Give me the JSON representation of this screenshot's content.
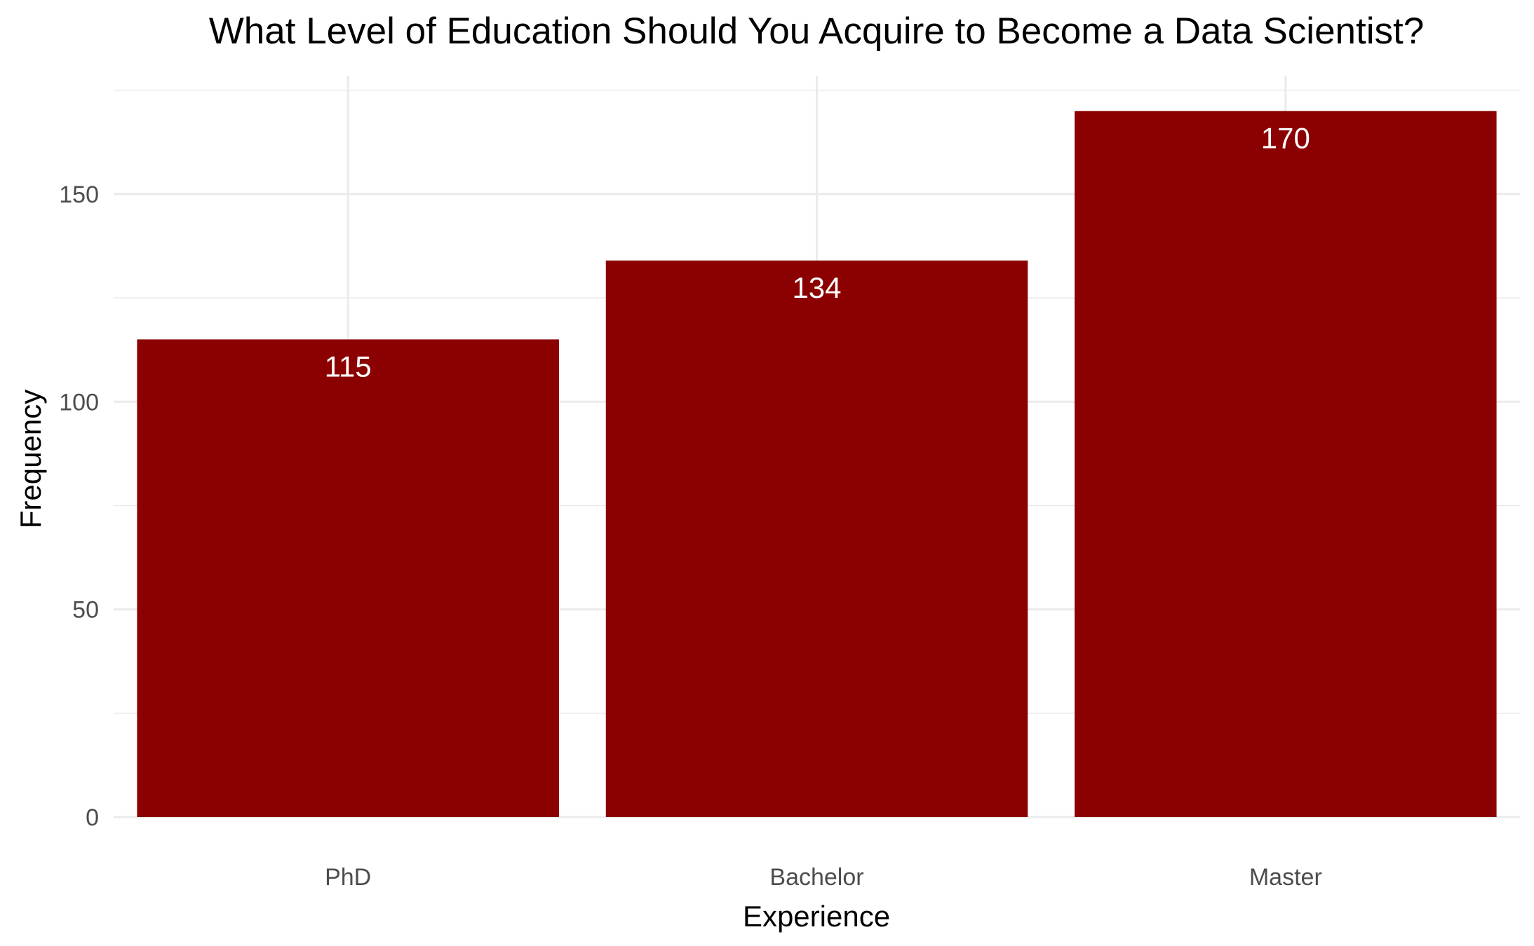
{
  "chart_data": {
    "type": "bar",
    "title": "What Level of Education Should You Acquire to Become a Data Scientist?",
    "xlabel": "Experience",
    "ylabel": "Frequency",
    "categories": [
      "PhD",
      "Bachelor",
      "Master"
    ],
    "values": [
      115,
      134,
      170
    ],
    "data_labels": [
      "115",
      "134",
      "170"
    ],
    "ylim": [
      0,
      178.5
    ],
    "y_ticks": [
      0,
      50,
      100,
      150
    ],
    "y_tick_labels": [
      "0",
      "50",
      "100",
      "150"
    ],
    "y_minor_ticks": [
      25,
      75,
      125,
      175
    ],
    "grid": true,
    "legend": "none",
    "bar_color": "#8B0000",
    "label_color": "#ffffff",
    "background": "#ffffff"
  }
}
